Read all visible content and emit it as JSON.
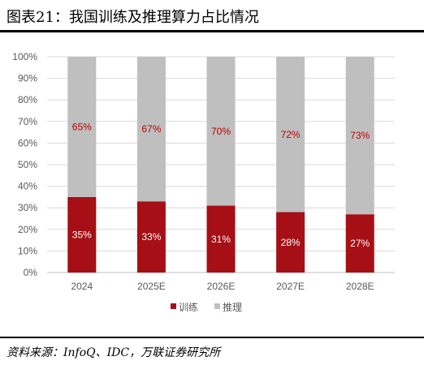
{
  "header": {
    "title": "图表21：我国训练及推理算力占比情况"
  },
  "footer": {
    "source": "资料来源：InfoQ、IDC，万联证券研究所"
  },
  "colors": {
    "train": "#a50f15",
    "infer": "#bfbfbf",
    "train_label": "#ffffff",
    "infer_label": "#c00000",
    "grid": "#d9d9d9"
  },
  "chart_data": {
    "type": "bar",
    "stacked": true,
    "percent": true,
    "categories": [
      "2024",
      "2025E",
      "2026E",
      "2027E",
      "2028E"
    ],
    "series": [
      {
        "name": "训练",
        "values": [
          35,
          33,
          31,
          28,
          27
        ],
        "labels": [
          "35%",
          "33%",
          "31%",
          "28%",
          "27%"
        ]
      },
      {
        "name": "推理",
        "values": [
          65,
          67,
          70,
          72,
          73
        ],
        "labels": [
          "65%",
          "67%",
          "70%",
          "72%",
          "73%"
        ]
      }
    ],
    "ylim": [
      0,
      100
    ],
    "yticks": [
      "0%",
      "10%",
      "20%",
      "30%",
      "40%",
      "50%",
      "60%",
      "70%",
      "80%",
      "90%",
      "100%"
    ],
    "grid": true,
    "legend": "bottom"
  }
}
